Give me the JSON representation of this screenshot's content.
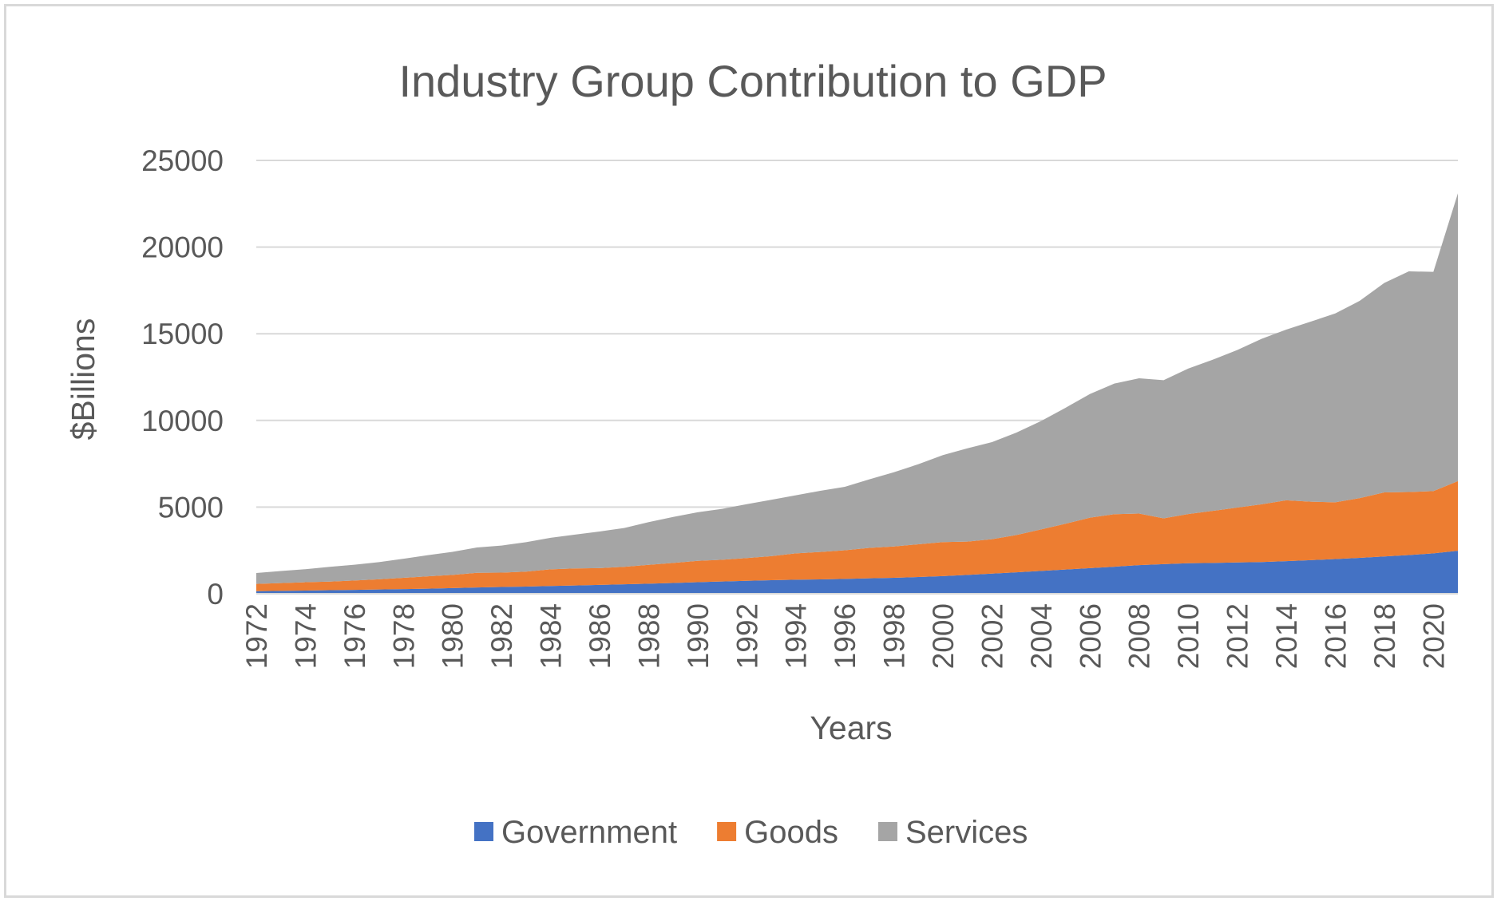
{
  "chart_data": {
    "type": "area",
    "stacked": true,
    "title": "Industry Group Contribution to GDP",
    "xlabel": "Years",
    "ylabel": "$Billions",
    "ylim": [
      0,
      25000
    ],
    "yticks": [
      0,
      5000,
      10000,
      15000,
      20000,
      25000
    ],
    "grid": "horizontal",
    "legend_position": "bottom",
    "x": [
      1972,
      1973,
      1974,
      1975,
      1976,
      1977,
      1978,
      1979,
      1980,
      1981,
      1982,
      1983,
      1984,
      1985,
      1986,
      1987,
      1988,
      1989,
      1990,
      1991,
      1992,
      1993,
      1994,
      1995,
      1996,
      1997,
      1998,
      1999,
      2000,
      2001,
      2002,
      2003,
      2004,
      2005,
      2006,
      2007,
      2008,
      2009,
      2010,
      2011,
      2012,
      2013,
      2014,
      2015,
      2016,
      2017,
      2018,
      2019,
      2020,
      2021
    ],
    "xtick_labels": [
      "1972",
      "1974",
      "1976",
      "1978",
      "1980",
      "1982",
      "1984",
      "1986",
      "1988",
      "1990",
      "1992",
      "1994",
      "1996",
      "1998",
      "2000",
      "2002",
      "2004",
      "2006",
      "2008",
      "2010",
      "2012",
      "2014",
      "2016",
      "2018",
      "2020"
    ],
    "series": [
      {
        "name": "Government",
        "color": "#4472c4",
        "values": [
          150,
          165,
          185,
          205,
          225,
          245,
          270,
          295,
          330,
          360,
          390,
          415,
          450,
          480,
          510,
          545,
          580,
          620,
          670,
          710,
          750,
          780,
          810,
          830,
          860,
          890,
          920,
          965,
          1020,
          1090,
          1160,
          1240,
          1320,
          1400,
          1480,
          1560,
          1650,
          1710,
          1760,
          1780,
          1810,
          1830,
          1880,
          1940,
          2000,
          2070,
          2150,
          2230,
          2330,
          2480
        ]
      },
      {
        "name": "Goods",
        "color": "#ed7d31",
        "values": [
          420,
          450,
          480,
          500,
          540,
          590,
          650,
          710,
          760,
          850,
          830,
          860,
          960,
          980,
          970,
          1010,
          1090,
          1160,
          1230,
          1250,
          1310,
          1390,
          1520,
          1580,
          1650,
          1760,
          1810,
          1890,
          1960,
          1920,
          1990,
          2150,
          2390,
          2640,
          2910,
          3030,
          2980,
          2640,
          2840,
          3000,
          3160,
          3330,
          3510,
          3370,
          3280,
          3450,
          3700,
          3640,
          3590,
          4020
        ]
      },
      {
        "name": "Services",
        "color": "#a5a5a5",
        "values": [
          630,
          700,
          750,
          850,
          910,
          990,
          1100,
          1220,
          1330,
          1460,
          1560,
          1700,
          1820,
          1950,
          2110,
          2240,
          2460,
          2650,
          2800,
          2940,
          3110,
          3250,
          3350,
          3530,
          3660,
          3950,
          4280,
          4620,
          5020,
          5380,
          5600,
          5910,
          6250,
          6690,
          7140,
          7540,
          7800,
          7970,
          8390,
          8720,
          9090,
          9550,
          9850,
          10390,
          10890,
          11380,
          12080,
          12730,
          12650,
          16600
        ]
      }
    ]
  }
}
